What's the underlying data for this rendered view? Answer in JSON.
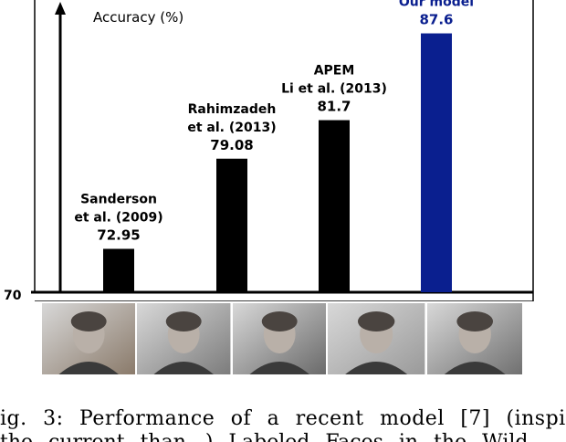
{
  "chart_data": {
    "type": "bar",
    "ylabel": "Accuracy (%)",
    "ymin_label": "70",
    "ylim": [
      70,
      89
    ],
    "categories": [
      {
        "lines": [
          "Sanderson",
          "et al. (2009)"
        ],
        "value_label": "72.95"
      },
      {
        "lines": [
          "Rahimzadeh",
          "et al.  (2013)"
        ],
        "value_label": "79.08"
      },
      {
        "lines": [
          "APEM",
          "Li et al. (2013)"
        ],
        "value_label": "81.7"
      },
      {
        "lines": [
          "Our model"
        ],
        "value_label": "87.6"
      }
    ],
    "values": [
      72.95,
      79.08,
      81.7,
      87.6
    ],
    "colors": [
      "#000000",
      "#000000",
      "#000000",
      "#0a1f8f"
    ],
    "highlight_color": "#0a1f8f"
  },
  "photos": [
    {
      "name": "photo-young-woman",
      "tone": "#8a7a6a"
    },
    {
      "name": "photo-man-glasses",
      "tone": "#7c7c7c"
    },
    {
      "name": "photo-man-smiling",
      "tone": "#6a6a6a"
    },
    {
      "name": "photo-young-man",
      "tone": "#9a9a9a"
    },
    {
      "name": "photo-man-suit",
      "tone": "#707070"
    }
  ],
  "caption": {
    "line1": "ig.   3:  Performance  of  a  recent  model  [7]  (inspir",
    "line2": "the current than...)   Labeled Faces in the Wild"
  }
}
